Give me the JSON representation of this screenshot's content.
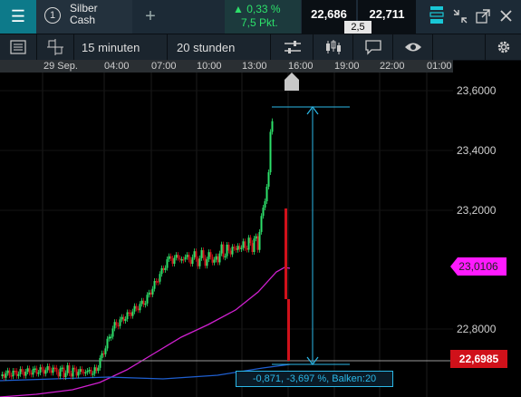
{
  "header": {
    "instrument_number": "1",
    "instrument_name_line1": "Silber",
    "instrument_name_line2": "Cash",
    "change_percent": "0,33 %",
    "change_points": "7,5 Pkt.",
    "bid": "22,686",
    "ask": "22,711",
    "spread": "2,5"
  },
  "toolbar": {
    "interval": "15 minuten",
    "range": "20 stunden"
  },
  "time_axis": [
    "29 Sep.",
    "04:00",
    "07:00",
    "10:00",
    "13:00",
    "16:00",
    "19:00",
    "22:00",
    "01:00"
  ],
  "price_axis": [
    "23,6000",
    "23,4000",
    "23,2000",
    "22,8000"
  ],
  "price_tags": {
    "ma_value": "23,0106",
    "last_price": "22,6985"
  },
  "measure": {
    "label": "-0,871, -3,697 %, Balken:20"
  },
  "colors": {
    "accent": "#0d7a8a",
    "up": "#2de06a",
    "down": "#d0111a",
    "ma1": "#d020d0",
    "ma2": "#1f5fd0",
    "measure": "#2bb8e8"
  }
}
